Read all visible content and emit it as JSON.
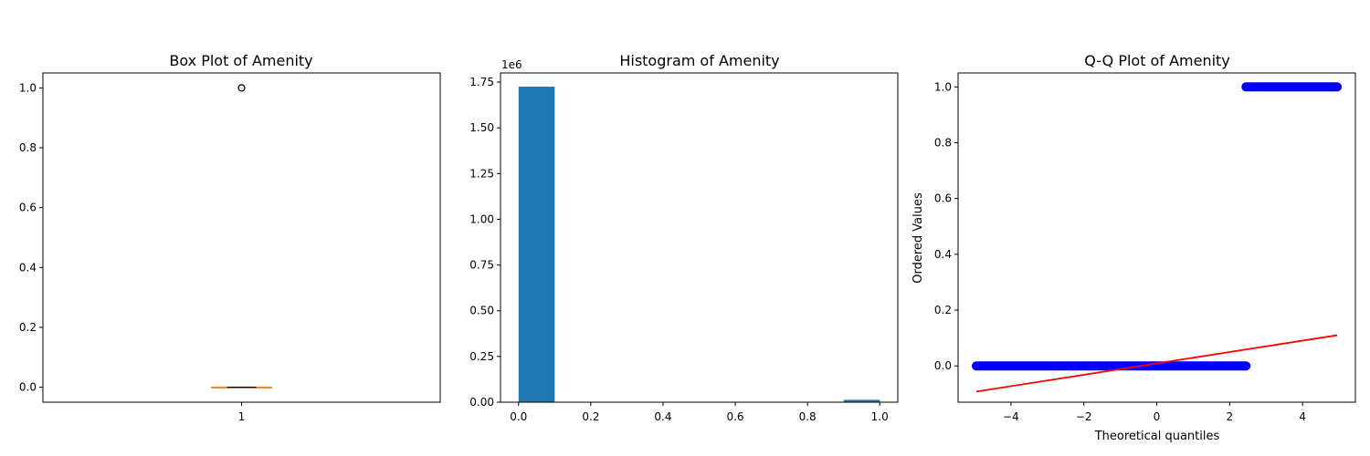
{
  "colors": {
    "box_median": "#ff7f0e",
    "hist_bar": "#1f77b4",
    "qq_points": "#0000ff",
    "qq_line": "#ff0000",
    "axes": "#000000"
  },
  "chart_data": [
    {
      "type": "box",
      "title": "Box Plot of Amenity",
      "xlabel": "",
      "ylabel": "",
      "categories": [
        "1"
      ],
      "box": {
        "q1": 0,
        "median": 0,
        "q3": 0,
        "whisker_low": 0,
        "whisker_high": 0,
        "outliers": [
          1.0
        ]
      },
      "ylim": [
        -0.05,
        1.05
      ],
      "yticks": [
        "0.0",
        "0.2",
        "0.4",
        "0.6",
        "0.8",
        "1.0"
      ],
      "grid": false
    },
    {
      "type": "bar",
      "title": "Histogram of Amenity",
      "xlabel": "",
      "ylabel": "",
      "offset_label": "1e6",
      "bins": [
        {
          "x0": 0.0,
          "x1": 0.1,
          "count": 1.725
        },
        {
          "x0": 0.9,
          "x1": 1.0,
          "count": 0.013
        }
      ],
      "xlim": [
        -0.05,
        1.05
      ],
      "ylim": [
        0,
        1.8
      ],
      "xticks": [
        "0.0",
        "0.2",
        "0.4",
        "0.6",
        "0.8",
        "1.0"
      ],
      "yticks": [
        "0.00",
        "0.25",
        "0.50",
        "0.75",
        "1.00",
        "1.25",
        "1.50",
        "1.75"
      ],
      "grid": false
    },
    {
      "type": "scatter",
      "title": "Q-Q Plot of Amenity",
      "xlabel": "Theoretical quantiles",
      "ylabel": "Ordered Values",
      "segments": [
        {
          "x_from": -4.95,
          "x_to": 2.45,
          "y": 0.0
        },
        {
          "x_from": 2.45,
          "x_to": 4.95,
          "y": 1.0
        }
      ],
      "fit_line": {
        "x": [
          -4.95,
          4.95
        ],
        "y": [
          -0.092,
          0.11
        ]
      },
      "xlim": [
        -5.45,
        5.45
      ],
      "ylim": [
        -0.13,
        1.05
      ],
      "xticks": [
        "−4",
        "−2",
        "0",
        "2",
        "4"
      ],
      "yticks": [
        "0.0",
        "0.2",
        "0.4",
        "0.6",
        "0.8",
        "1.0"
      ],
      "grid": false
    }
  ]
}
